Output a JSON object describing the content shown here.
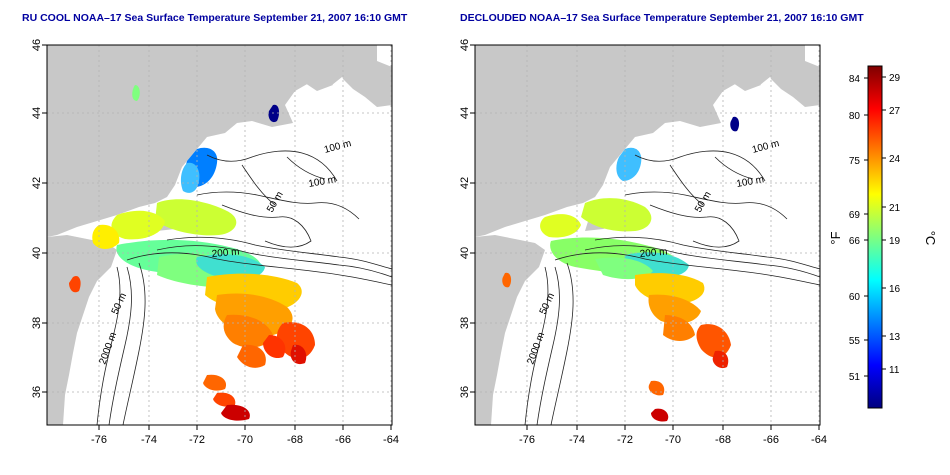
{
  "colors": {
    "land": "#c8c8c8",
    "ocean": "#ffffff",
    "title": "#0000a0",
    "grid": "#b4b4b4",
    "contour": "#222222"
  },
  "left_map": {
    "title": "RU COOL NOAA–17 Sea Surface Temperature September 21, 2007 16:10 GMT",
    "lon_ticks": [
      "-76",
      "-74",
      "-72",
      "-70",
      "-68",
      "-66",
      "-64"
    ],
    "lat_ticks": [
      "36",
      "38",
      "40",
      "42",
      "44",
      "46"
    ],
    "contour_labels": [
      "100 m",
      "100 m",
      "50 m",
      "200 m",
      "50 m",
      "2000 m"
    ]
  },
  "right_map": {
    "title": "DECLOUDED NOAA–17 Sea Surface Temperature September 21, 2007 16:10 GMT",
    "lon_ticks": [
      "-76",
      "-74",
      "-72",
      "-70",
      "-68",
      "-66",
      "-64"
    ],
    "lat_ticks": [
      "36",
      "38",
      "40",
      "42",
      "44",
      "46"
    ],
    "contour_labels": [
      "100 m",
      "100 m",
      "50 m",
      "200 m",
      "50 m",
      "2000 m"
    ]
  },
  "colorbar": {
    "f_unit": "°F",
    "c_unit": "°C",
    "f_ticks": [
      "84",
      "80",
      "75",
      "69",
      "66",
      "60",
      "55",
      "51"
    ],
    "c_ticks": [
      "29",
      "27",
      "24",
      "21",
      "19",
      "16",
      "13",
      "11"
    ],
    "gradient": [
      "#00007f",
      "#0000ff",
      "#007fff",
      "#00ffff",
      "#7fff7f",
      "#ffff00",
      "#ff7f00",
      "#ff0000",
      "#7f0000"
    ]
  }
}
